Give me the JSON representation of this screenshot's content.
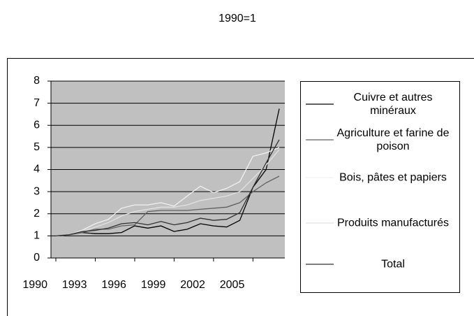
{
  "chart_data": {
    "type": "line",
    "title": "1990=1",
    "x": [
      1990,
      1991,
      1992,
      1993,
      1994,
      1995,
      1996,
      1997,
      1998,
      1999,
      2000,
      2001,
      2002,
      2003,
      2004,
      2005,
      2006,
      2007
    ],
    "xlim": [
      1990,
      2007
    ],
    "xticks": [
      1990,
      1993,
      1996,
      1999,
      2002,
      2005
    ],
    "ylim": [
      0,
      8
    ],
    "yticks": [
      0,
      1,
      2,
      3,
      4,
      5,
      6,
      7,
      8
    ],
    "grid": true,
    "series": [
      {
        "name": "Cuivre et autres minéraux",
        "color": "#000000",
        "values": [
          1,
          1.05,
          1.15,
          1.1,
          1.1,
          1.15,
          1.45,
          1.35,
          1.45,
          1.2,
          1.3,
          1.55,
          1.45,
          1.4,
          1.7,
          3.2,
          4.0,
          6.75
        ]
      },
      {
        "name": "Agriculture et farine de poison",
        "color": "#606060",
        "values": [
          1,
          1.05,
          1.15,
          1.3,
          1.3,
          1.45,
          1.5,
          2.1,
          2.15,
          2.15,
          2.15,
          2.2,
          2.25,
          2.3,
          2.5,
          3.0,
          3.4,
          3.7
        ]
      },
      {
        "name": "Bois, pâtes et papiers",
        "color": "#f2f2f2",
        "values": [
          1,
          1.05,
          1.25,
          1.55,
          1.75,
          2.25,
          2.4,
          2.4,
          2.5,
          2.35,
          2.8,
          3.25,
          2.95,
          3.15,
          3.45,
          4.6,
          4.75,
          5.0
        ]
      },
      {
        "name": "Produits manufacturés",
        "color": "#e2e2e2",
        "values": [
          1,
          1.05,
          1.2,
          1.4,
          1.6,
          1.9,
          2.1,
          2.2,
          2.3,
          2.3,
          2.4,
          2.6,
          2.7,
          2.8,
          3.0,
          3.6,
          4.2,
          4.9
        ]
      },
      {
        "name": "Total",
        "color": "#303030",
        "values": [
          1,
          1.05,
          1.2,
          1.25,
          1.35,
          1.55,
          1.6,
          1.5,
          1.65,
          1.5,
          1.6,
          1.8,
          1.7,
          1.75,
          2.05,
          3.2,
          4.3,
          5.35
        ]
      }
    ]
  }
}
